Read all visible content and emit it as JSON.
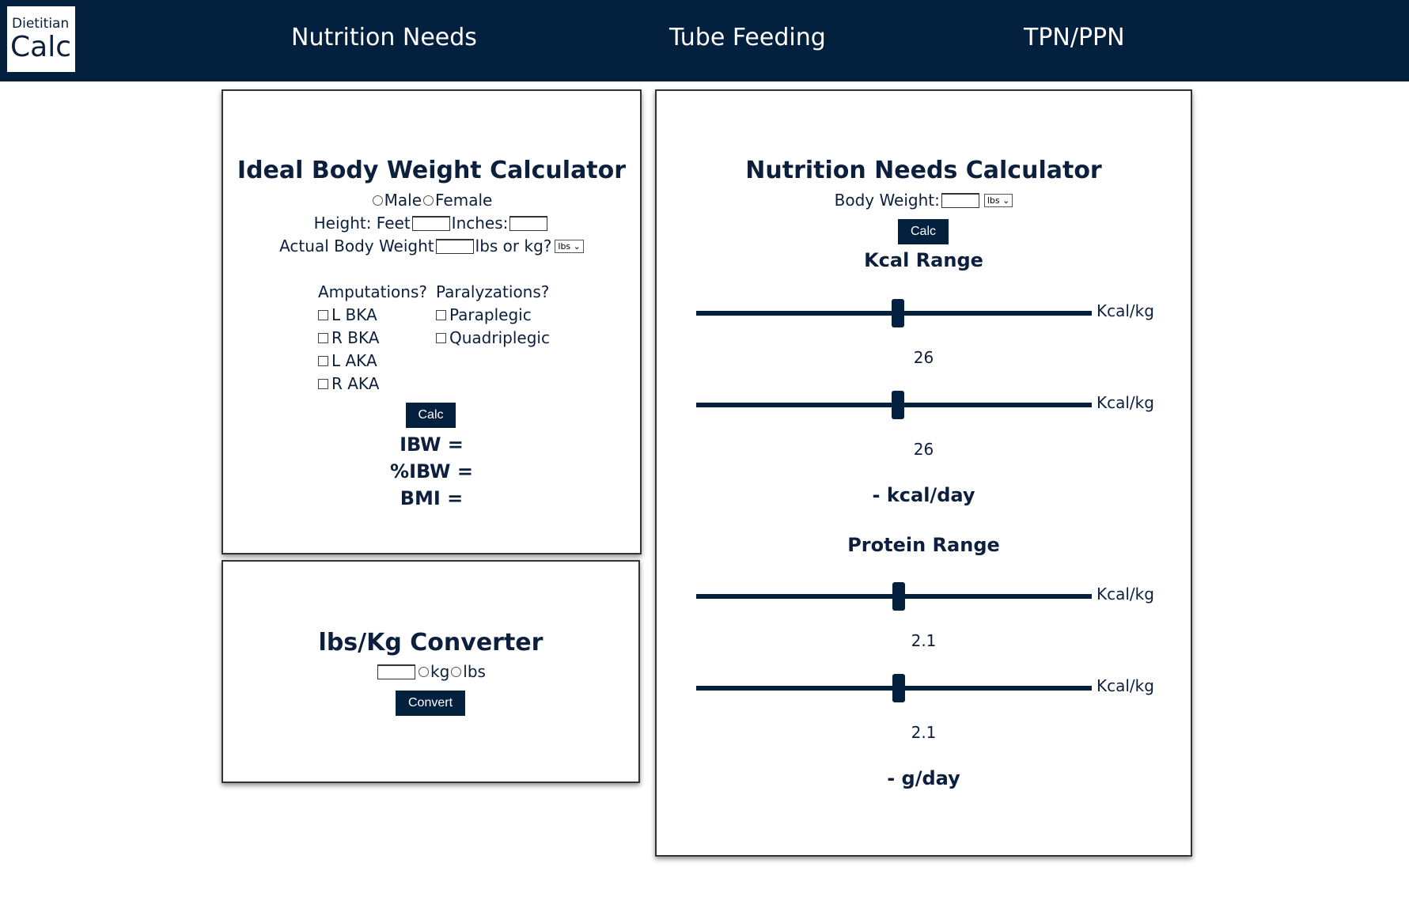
{
  "nav": {
    "logo_line1": "Dietitian",
    "logo_line2": "Calc",
    "items": [
      "Nutrition Needs",
      "Tube Feeding",
      "TPN/PPN"
    ]
  },
  "ibw": {
    "title": "Ideal Body Weight Calculator",
    "male_label": "Male",
    "female_label": "Female",
    "height_feet_label": "Height: Feet",
    "inches_label": "Inches:",
    "abw_label": "Actual Body Weight",
    "lbs_or_kg_label": "lbs or kg?",
    "unit_select": "lbs",
    "amputations_header": "Amputations?",
    "amputations": [
      "L BKA",
      "R BKA",
      "L AKA",
      "R AKA"
    ],
    "paralyzations_header": "Paralyzations?",
    "paralyzations": [
      "Paraplegic",
      "Quadriplegic"
    ],
    "calc_label": "Calc",
    "ibw_result": "IBW =",
    "pibw_result": "%IBW =",
    "bmi_result": "BMI ="
  },
  "converter": {
    "title": "lbs/Kg Converter",
    "kg_label": "kg",
    "lbs_label": "lbs",
    "convert_label": "Convert"
  },
  "needs": {
    "title": "Nutrition Needs Calculator",
    "body_weight_label": "Body Weight:",
    "unit_select": "lbs",
    "calc_label": "Calc",
    "kcal_range_title": "Kcal Range",
    "kcal_sliders": [
      {
        "unit": "Kcal/kg",
        "value": "26",
        "level": 0.5
      },
      {
        "unit": "Kcal/kg",
        "value": "26",
        "level": 0.5
      }
    ],
    "kcal_result": "-  kcal/day",
    "protein_range_title": "Protein Range",
    "protein_sliders": [
      {
        "unit": "Kcal/kg",
        "value": "2.1",
        "level": 0.5
      },
      {
        "unit": "Kcal/kg",
        "value": "2.1",
        "level": 0.5
      }
    ],
    "protein_result": "-  g/day"
  }
}
